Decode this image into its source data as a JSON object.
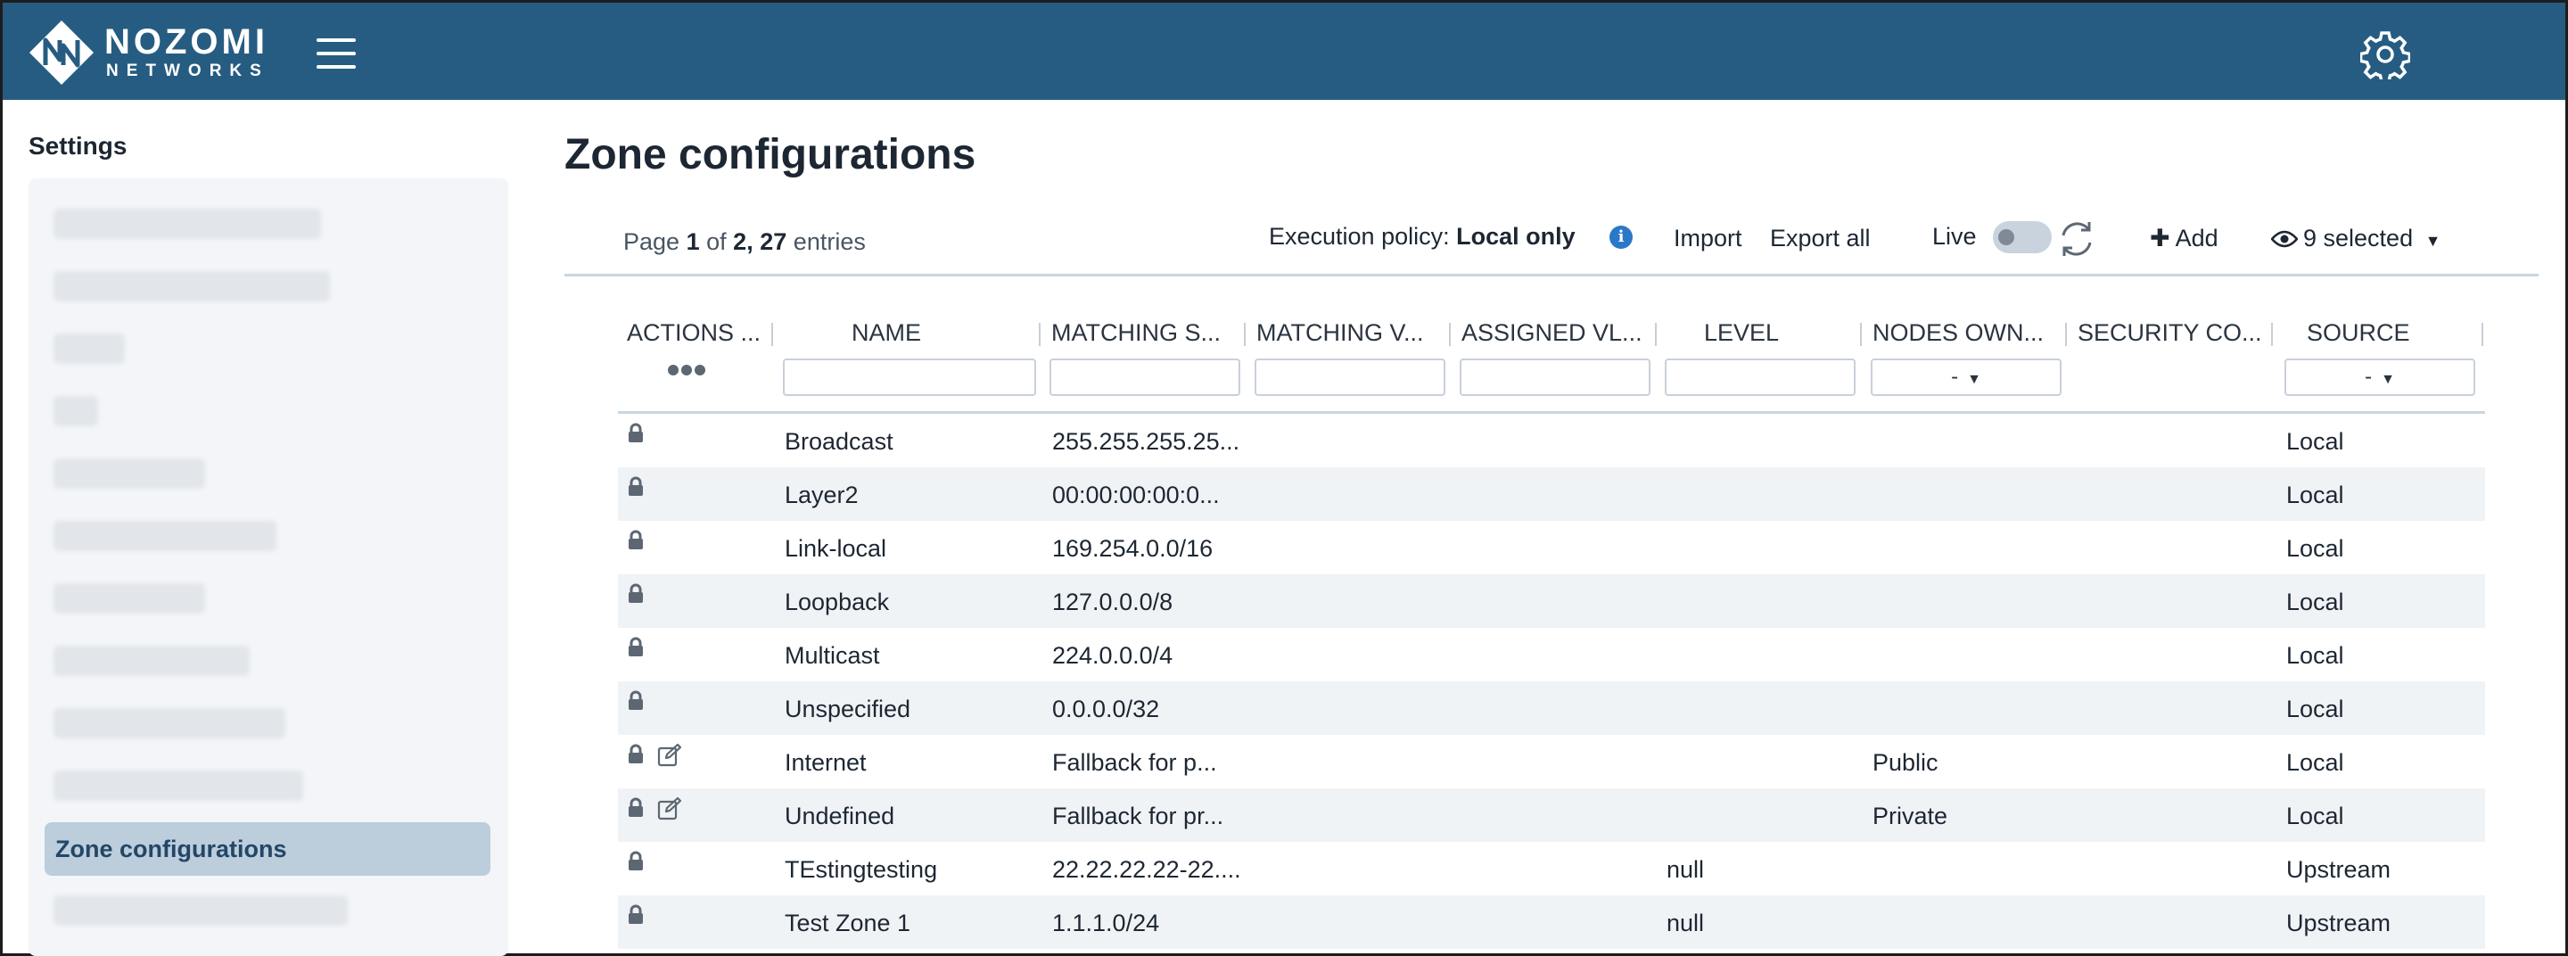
{
  "header": {
    "brand_line1": "NOZOMI",
    "brand_line2": "NETWORKS"
  },
  "sidebar": {
    "title": "Settings",
    "active_item": "Zone configurations"
  },
  "main": {
    "title": "Zone configurations",
    "paging": {
      "prefix": "Page",
      "page": "1",
      "of": "of",
      "total_pages": "2",
      "entries": "27",
      "entries_label": "entries"
    },
    "execution_policy": {
      "label": "Execution policy:",
      "value": "Local only"
    },
    "import_label": "Import",
    "export_label": "Export all",
    "live_label": "Live",
    "live_on": false,
    "add_label": "Add",
    "columns_label": "9 selected"
  },
  "table": {
    "columns": [
      "ACTIONS ...",
      "NAME",
      "MATCHING S...",
      "MATCHING V...",
      "ASSIGNED VL...",
      "LEVEL",
      "NODES OWN...",
      "SECURITY CO...",
      "SOURCE"
    ],
    "filters": {
      "nodes_ownership": "-",
      "source": "-"
    },
    "rows": [
      {
        "editable": false,
        "name": "Broadcast",
        "matching_subnets": "255.255.255.25...",
        "level": "",
        "nodes_ownership": "",
        "source": "Local"
      },
      {
        "editable": false,
        "name": "Layer2",
        "matching_subnets": "00:00:00:00:0...",
        "level": "",
        "nodes_ownership": "",
        "source": "Local"
      },
      {
        "editable": false,
        "name": "Link-local",
        "matching_subnets": "169.254.0.0/16",
        "level": "",
        "nodes_ownership": "",
        "source": "Local"
      },
      {
        "editable": false,
        "name": "Loopback",
        "matching_subnets": "127.0.0.0/8",
        "level": "",
        "nodes_ownership": "",
        "source": "Local"
      },
      {
        "editable": false,
        "name": "Multicast",
        "matching_subnets": "224.0.0.0/4",
        "level": "",
        "nodes_ownership": "",
        "source": "Local"
      },
      {
        "editable": false,
        "name": "Unspecified",
        "matching_subnets": "0.0.0.0/32",
        "level": "",
        "nodes_ownership": "",
        "source": "Local"
      },
      {
        "editable": true,
        "name": "Internet",
        "matching_subnets": "Fallback for p...",
        "level": "",
        "nodes_ownership": "Public",
        "source": "Local"
      },
      {
        "editable": true,
        "name": "Undefined",
        "matching_subnets": "Fallback for pr...",
        "level": "",
        "nodes_ownership": "Private",
        "source": "Local"
      },
      {
        "editable": false,
        "name": "TEstingtesting",
        "matching_subnets": "22.22.22.22-22....",
        "level": "null",
        "nodes_ownership": "",
        "source": "Upstream"
      },
      {
        "editable": false,
        "name": "Test Zone 1",
        "matching_subnets": "1.1.1.0/24",
        "level": "null",
        "nodes_ownership": "",
        "source": "Upstream"
      }
    ]
  },
  "colors": {
    "header_bg": "#265c82",
    "sidebar_active_bg": "#bccddc",
    "row_alt_bg": "#f0f3f6",
    "info_icon": "#2a78c8"
  },
  "icons": [
    "logo-icon",
    "hamburger-menu-icon",
    "gear-icon",
    "info-icon",
    "refresh-icon",
    "plus-icon",
    "eye-icon",
    "caret-down-icon",
    "lock-icon",
    "edit-icon",
    "more-dots-icon"
  ]
}
